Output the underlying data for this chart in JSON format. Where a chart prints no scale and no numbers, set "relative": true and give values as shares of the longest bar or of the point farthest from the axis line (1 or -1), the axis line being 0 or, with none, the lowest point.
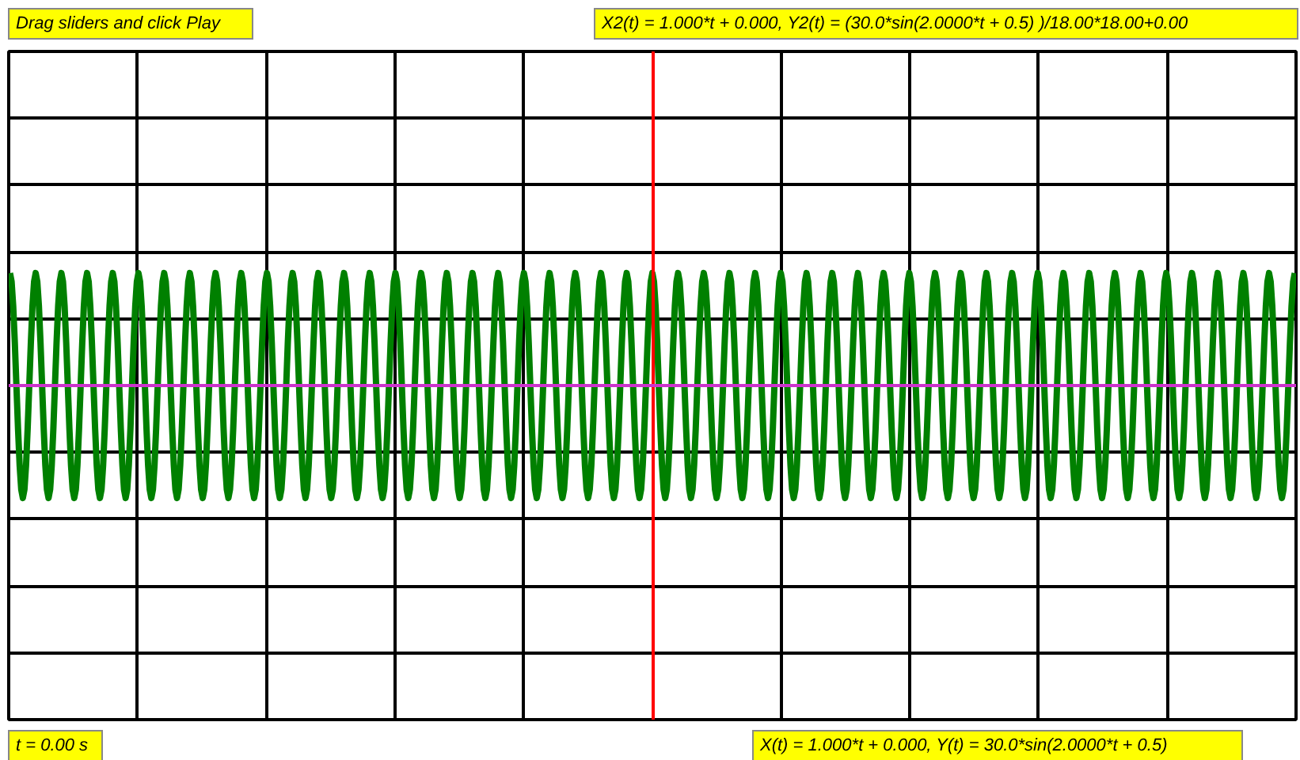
{
  "chart_data": {
    "type": "line",
    "relative": true,
    "grid": true,
    "ref_lines": [
      {
        "axis": "y",
        "value": 0,
        "color": "#cc33cc"
      }
    ],
    "annotations": [
      "Drag sliders and click Play",
      "X2(t) = 1.000*t + 0.000, Y2(t) = (30.0*sin(2.0000*t + 0.5) )/18.00*18.00+0.00",
      "t = 0.00 s",
      "X(t) = 1.000*t + 0.000, Y(t) = 30.0*sin(2.0000*t + 0.5)"
    ],
    "categories": [
      null,
      null,
      null,
      null,
      null,
      null,
      null,
      null,
      null,
      null,
      null,
      null,
      null,
      null,
      null,
      null,
      null,
      null,
      null,
      null,
      null,
      null,
      null,
      null,
      null,
      null,
      null,
      null,
      null,
      null,
      null,
      null,
      null,
      null,
      null,
      null,
      null,
      null,
      null,
      null,
      null,
      null,
      null,
      null,
      null,
      null,
      null,
      null,
      null,
      null,
      null,
      null,
      null,
      null,
      null,
      null,
      null,
      null,
      null,
      null,
      null,
      null,
      null,
      null,
      null,
      null,
      null,
      null,
      null,
      null,
      null,
      null,
      null,
      null,
      null,
      null,
      null,
      null,
      null,
      null,
      null,
      null,
      null,
      null,
      null,
      null,
      null,
      null,
      null,
      null,
      null,
      null,
      null,
      null,
      null,
      null,
      null,
      null,
      null,
      null,
      null
    ],
    "series": [
      {
        "color": "#008000",
        "values": [
          1,
          -1,
          1,
          -1,
          1,
          -1,
          1,
          -1,
          1,
          -1,
          1,
          -1,
          1,
          -1,
          1,
          -1,
          1,
          -1,
          1,
          -1,
          1,
          -1,
          1,
          -1,
          1,
          -1,
          1,
          -1,
          1,
          -1,
          1,
          -1,
          1,
          -1,
          1,
          -1,
          1,
          -1,
          1,
          -1,
          1,
          -1,
          1,
          -1,
          1,
          -1,
          1,
          -1,
          1,
          -1,
          1,
          -1,
          1,
          -1,
          1,
          -1,
          1,
          -1,
          1,
          -1,
          1,
          -1,
          1,
          -1,
          1,
          -1,
          1,
          -1,
          1,
          -1,
          1,
          -1,
          1,
          -1,
          1,
          -1,
          1,
          -1,
          1,
          -1,
          1,
          -1,
          1,
          -1,
          1,
          -1,
          1,
          -1,
          1,
          -1,
          1,
          -1,
          1,
          -1,
          1,
          -1,
          1,
          -1,
          1,
          -1,
          1
        ]
      }
    ]
  }
}
